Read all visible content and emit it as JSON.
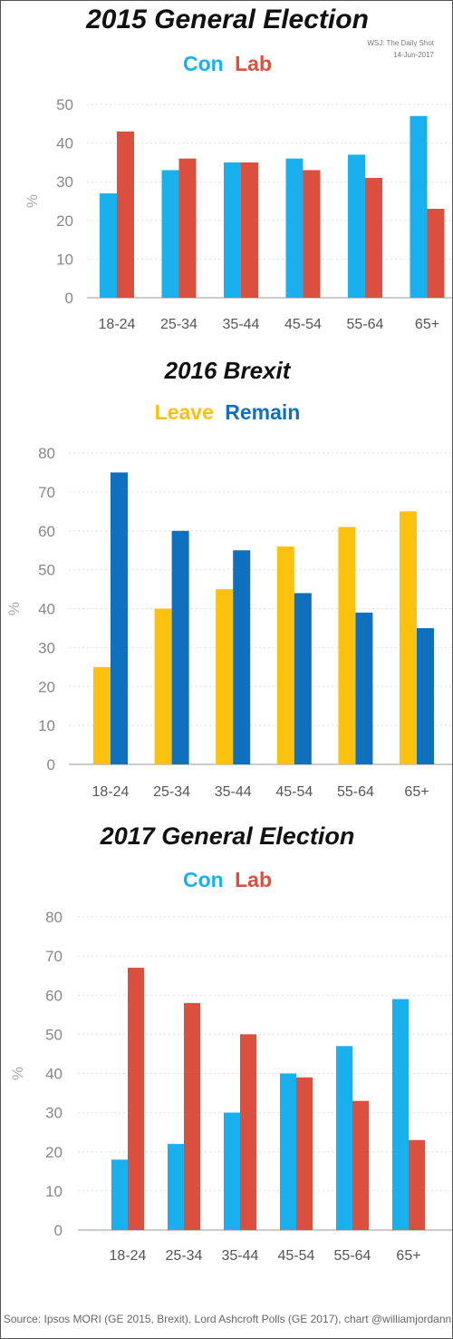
{
  "watermark": {
    "line1": "WSJ: The Daily Shot",
    "line2": "14-Jun-2017"
  },
  "source": "Source: Ipsos MORI (GE 2015, Brexit), Lord Ashcroft Polls (GE 2017), chart @williamjordann",
  "chart_data": [
    {
      "type": "bar",
      "title": "2015 General Election",
      "ylabel": "%",
      "ylim": [
        0,
        50
      ],
      "yticks": [
        0,
        10,
        20,
        30,
        40,
        50
      ],
      "grid": true,
      "categories": [
        "18-24",
        "25-34",
        "35-44",
        "45-54",
        "55-64",
        "65+"
      ],
      "series": [
        {
          "name": "Con",
          "color": "#1ab0ee",
          "values": [
            27,
            33,
            35,
            36,
            37,
            47
          ]
        },
        {
          "name": "Lab",
          "color": "#db4f3f",
          "values": [
            43,
            36,
            35,
            33,
            31,
            23
          ]
        }
      ]
    },
    {
      "type": "bar",
      "title": "2016 Brexit",
      "ylabel": "%",
      "ylim": [
        0,
        80
      ],
      "yticks": [
        0,
        10,
        20,
        30,
        40,
        50,
        60,
        70,
        80
      ],
      "grid": true,
      "categories": [
        "18-24",
        "25-34",
        "35-44",
        "45-54",
        "55-64",
        "65+"
      ],
      "series": [
        {
          "name": "Leave",
          "color": "#fcc10f",
          "values": [
            25,
            40,
            45,
            56,
            61,
            65
          ]
        },
        {
          "name": "Remain",
          "color": "#1170bd",
          "values": [
            75,
            60,
            55,
            44,
            39,
            35
          ]
        }
      ]
    },
    {
      "type": "bar",
      "title": "2017 General Election",
      "ylabel": "%",
      "ylim": [
        0,
        80
      ],
      "yticks": [
        0,
        10,
        20,
        30,
        40,
        50,
        60,
        70,
        80
      ],
      "grid": true,
      "categories": [
        "18-24",
        "25-34",
        "35-44",
        "45-54",
        "55-64",
        "65+"
      ],
      "series": [
        {
          "name": "Con",
          "color": "#1ab0ee",
          "values": [
            18,
            22,
            30,
            40,
            47,
            59
          ]
        },
        {
          "name": "Lab",
          "color": "#db4f3f",
          "values": [
            67,
            58,
            50,
            39,
            33,
            23
          ]
        }
      ]
    }
  ]
}
